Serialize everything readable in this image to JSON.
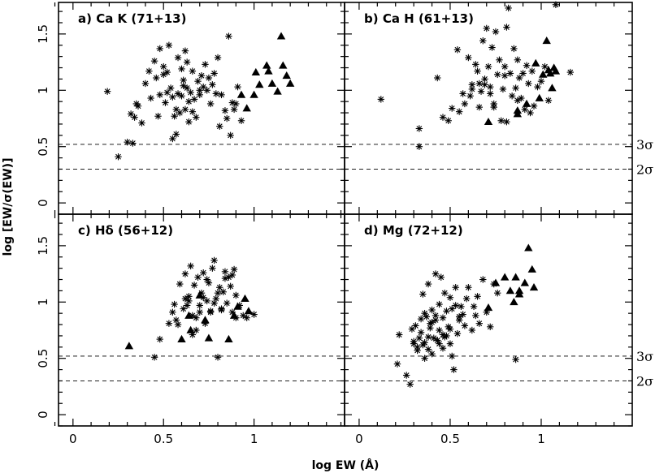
{
  "figure": {
    "ylabel": "log [EW/σ(EW)]",
    "xlabel": "log EW (Å)",
    "sigma_labels": [
      "3σ",
      "2σ"
    ],
    "sigma_levels": [
      0.52,
      0.3
    ]
  },
  "chart_data": [
    {
      "type": "scatter",
      "title": "a) Ca K (71+13)",
      "xlim": [
        -0.08,
        1.5
      ],
      "ylim": [
        -0.1,
        1.78
      ],
      "xticks": [
        "0",
        "0.5",
        "1"
      ],
      "yticks": [
        "0",
        "0.5",
        "1",
        "1.5"
      ],
      "reference_lines": [
        0.52,
        0.3
      ],
      "series": [
        {
          "marker": "asterisk",
          "x": [
            0.19,
            0.25,
            0.3,
            0.32,
            0.33,
            0.34,
            0.35,
            0.36,
            0.38,
            0.4,
            0.42,
            0.43,
            0.45,
            0.46,
            0.48,
            0.48,
            0.5,
            0.5,
            0.51,
            0.52,
            0.53,
            0.54,
            0.55,
            0.56,
            0.57,
            0.58,
            0.58,
            0.59,
            0.6,
            0.6,
            0.61,
            0.62,
            0.62,
            0.63,
            0.63,
            0.64,
            0.64,
            0.65,
            0.66,
            0.66,
            0.67,
            0.68,
            0.69,
            0.7,
            0.7,
            0.71,
            0.72,
            0.73,
            0.74,
            0.75,
            0.76,
            0.77,
            0.78,
            0.79,
            0.8,
            0.81,
            0.82,
            0.84,
            0.85,
            0.86,
            0.87,
            0.88,
            0.89,
            0.9,
            0.91,
            0.93,
            0.55,
            0.57,
            0.61,
            0.47,
            0.52
          ],
          "y": [
            0.99,
            0.41,
            0.54,
            0.79,
            0.53,
            0.76,
            0.88,
            0.86,
            0.71,
            1.06,
            1.17,
            0.93,
            1.26,
            1.11,
            0.96,
            1.37,
            1.21,
            1.14,
            0.89,
            1.16,
            1.4,
            1.02,
            0.57,
            0.77,
            0.61,
            0.97,
            1.29,
            0.8,
            1.19,
            0.95,
            1.09,
            0.83,
            1.35,
            1.02,
            1.25,
            0.9,
            0.72,
            0.98,
            0.81,
            1.17,
            0.92,
            0.76,
            1.08,
            0.96,
            1.0,
            1.13,
            1.03,
            1.23,
            1.0,
            1.11,
            0.88,
            1.05,
            1.15,
            0.97,
            1.29,
            0.68,
            0.96,
            0.82,
            0.75,
            1.48,
            0.6,
            0.89,
            0.83,
            0.88,
            1.03,
            0.73,
            0.94,
            0.83,
            1.04,
            0.77,
            0.98
          ]
        },
        {
          "marker": "triangle",
          "x": [
            0.96,
            1.0,
            1.01,
            1.03,
            1.07,
            1.08,
            1.1,
            1.13,
            1.15,
            1.16,
            1.18,
            1.2,
            0.93
          ],
          "y": [
            0.84,
            0.96,
            1.16,
            1.05,
            1.22,
            1.17,
            1.06,
            0.99,
            1.48,
            1.22,
            1.13,
            1.06,
            0.96
          ]
        }
      ]
    },
    {
      "type": "scatter",
      "title": "b) Ca H (61+13)",
      "xlim": [
        -0.08,
        1.5
      ],
      "ylim": [
        -0.1,
        1.78
      ],
      "xticks": [
        "0",
        "0.5",
        "1"
      ],
      "yticks": [
        "0",
        "0.5",
        "1",
        "1.5"
      ],
      "reference_lines": [
        0.52,
        0.3
      ],
      "series": [
        {
          "marker": "asterisk",
          "x": [
            0.12,
            0.33,
            0.33,
            0.43,
            0.46,
            0.49,
            0.51,
            0.54,
            0.55,
            0.57,
            0.58,
            0.6,
            0.61,
            0.62,
            0.64,
            0.65,
            0.66,
            0.67,
            0.68,
            0.69,
            0.7,
            0.71,
            0.72,
            0.73,
            0.74,
            0.75,
            0.76,
            0.77,
            0.78,
            0.79,
            0.8,
            0.81,
            0.81,
            0.82,
            0.83,
            0.84,
            0.85,
            0.86,
            0.87,
            0.88,
            0.89,
            0.9,
            0.91,
            0.92,
            0.93,
            0.94,
            0.95,
            0.96,
            0.98,
            1.0,
            1.02,
            1.04,
            1.08,
            1.16,
            0.66,
            0.72,
            0.62,
            0.8,
            0.87,
            0.74,
            0.69
          ],
          "y": [
            0.92,
            0.5,
            0.66,
            1.11,
            0.76,
            0.73,
            0.84,
            1.36,
            0.81,
            0.97,
            0.88,
            1.29,
            0.95,
            1.05,
            1.23,
            1.17,
            1.06,
            0.99,
            1.44,
            1.1,
            1.55,
            1.21,
            1.03,
            1.38,
            0.88,
            1.52,
            1.14,
            1.27,
            0.73,
            1.01,
            1.21,
            1.56,
            0.72,
            1.73,
            1.15,
            0.95,
            1.37,
            1.02,
            1.27,
            1.11,
            0.93,
            1.15,
            0.83,
            1.22,
            1.06,
            0.8,
            1.17,
            0.86,
            1.03,
            1.08,
            1.21,
            0.91,
            1.76,
            1.16,
            0.85,
            0.97,
            1.01,
            1.13,
            0.91,
            0.85,
            1.05
          ]
        },
        {
          "marker": "triangle",
          "x": [
            0.71,
            0.87,
            0.92,
            0.97,
            0.99,
            1.01,
            1.03,
            1.04,
            1.05,
            1.06,
            1.07,
            1.08,
            0.87
          ],
          "y": [
            0.72,
            0.82,
            0.88,
            1.24,
            0.93,
            1.14,
            1.44,
            1.18,
            1.15,
            1.02,
            1.2,
            1.17,
            0.79
          ]
        }
      ]
    },
    {
      "type": "scatter",
      "title": "c) Hδ (56+12)",
      "xlim": [
        -0.08,
        1.5
      ],
      "ylim": [
        -0.1,
        1.78
      ],
      "xticks": [
        "0",
        "0.5",
        "1"
      ],
      "yticks": [
        "0",
        "0.5",
        "1",
        "1.5"
      ],
      "reference_lines": [
        0.52,
        0.3
      ],
      "series": [
        {
          "marker": "asterisk",
          "x": [
            0.45,
            0.48,
            0.53,
            0.55,
            0.57,
            0.59,
            0.61,
            0.62,
            0.63,
            0.64,
            0.65,
            0.66,
            0.67,
            0.68,
            0.69,
            0.7,
            0.71,
            0.72,
            0.73,
            0.74,
            0.75,
            0.76,
            0.77,
            0.78,
            0.79,
            0.8,
            0.81,
            0.82,
            0.83,
            0.84,
            0.85,
            0.86,
            0.87,
            0.88,
            0.89,
            0.9,
            0.92,
            0.94,
            0.96,
            1.0,
            0.62,
            0.66,
            0.7,
            0.74,
            0.78,
            0.82,
            0.58,
            0.64,
            0.68,
            0.72,
            0.76,
            0.8,
            0.84,
            0.88,
            0.9,
            0.56
          ],
          "y": [
            0.51,
            0.67,
            0.81,
            0.91,
            0.84,
            1.16,
            0.94,
            1.25,
            0.97,
            1.05,
            1.32,
            0.88,
            1.15,
            0.75,
            1.22,
            0.97,
            1.08,
            1.26,
            0.81,
            1.01,
            1.17,
            0.91,
            1.3,
            1.37,
            1.03,
            0.51,
            1.13,
            0.94,
            1.09,
            1.27,
            0.99,
            1.22,
            1.14,
            0.91,
            1.29,
            1.06,
            0.97,
            0.88,
            0.86,
            0.89,
            1.03,
            0.71,
            0.91,
            1.2,
            0.99,
            0.93,
            0.8,
            1.01,
            0.86,
            1.04,
            0.92,
            1.08,
            1.21,
            1.24,
            0.86,
            0.98
          ]
        },
        {
          "marker": "triangle",
          "x": [
            0.31,
            0.6,
            0.64,
            0.65,
            0.7,
            0.73,
            0.75,
            0.86,
            0.89,
            0.91,
            0.95,
            0.97
          ],
          "y": [
            0.61,
            0.67,
            0.88,
            0.75,
            1.06,
            0.84,
            0.68,
            0.67,
            0.88,
            0.96,
            1.03,
            0.92
          ]
        }
      ]
    },
    {
      "type": "scatter",
      "title": "d) Mg (72+12)",
      "xlim": [
        -0.08,
        1.5
      ],
      "ylim": [
        -0.1,
        1.78
      ],
      "xticks": [
        "0",
        "0.5",
        "1"
      ],
      "yticks": [
        "0",
        "0.5",
        "1",
        "1.5"
      ],
      "reference_lines": [
        0.52,
        0.3
      ],
      "series": [
        {
          "marker": "asterisk",
          "x": [
            0.21,
            0.22,
            0.26,
            0.28,
            0.29,
            0.3,
            0.31,
            0.32,
            0.33,
            0.34,
            0.35,
            0.35,
            0.36,
            0.37,
            0.38,
            0.38,
            0.39,
            0.4,
            0.4,
            0.41,
            0.42,
            0.42,
            0.43,
            0.44,
            0.44,
            0.45,
            0.46,
            0.46,
            0.47,
            0.48,
            0.48,
            0.49,
            0.5,
            0.5,
            0.51,
            0.52,
            0.53,
            0.53,
            0.54,
            0.55,
            0.56,
            0.57,
            0.58,
            0.59,
            0.6,
            0.62,
            0.63,
            0.64,
            0.65,
            0.66,
            0.68,
            0.7,
            0.72,
            0.74,
            0.76,
            0.86,
            0.3,
            0.34,
            0.36,
            0.4,
            0.44,
            0.38,
            0.42,
            0.46,
            0.5,
            0.32,
            0.36,
            0.39,
            0.43,
            0.47,
            0.51,
            0.55
          ],
          "y": [
            0.45,
            0.71,
            0.35,
            0.27,
            0.76,
            0.63,
            0.79,
            0.57,
            0.68,
            0.85,
            0.62,
            1.07,
            0.5,
            0.87,
            0.69,
            1.16,
            0.77,
            0.54,
            0.93,
            0.68,
            1.25,
            0.84,
            0.66,
            0.98,
            0.75,
            1.22,
            0.59,
            0.86,
            1.08,
            0.7,
            0.92,
            0.78,
            0.63,
            1.04,
            0.52,
            0.4,
            0.97,
            1.13,
            0.72,
            0.84,
            0.96,
            0.89,
            0.79,
            1.03,
            1.13,
            0.75,
            0.96,
            0.88,
            1.05,
            0.81,
            1.2,
            0.91,
            0.78,
            1.16,
            1.08,
            0.49,
            0.65,
            0.73,
            0.9,
            0.82,
            0.63,
            0.58,
            0.88,
            0.71,
            0.76,
            0.6,
            0.64,
            0.81,
            0.66,
            0.69,
            0.94,
            0.87
          ]
        },
        {
          "marker": "triangle",
          "x": [
            0.71,
            0.75,
            0.8,
            0.83,
            0.86,
            0.88,
            0.88,
            0.91,
            0.93,
            0.95,
            0.96,
            0.85
          ],
          "y": [
            0.95,
            1.17,
            1.22,
            1.1,
            1.22,
            1.1,
            1.07,
            1.17,
            1.48,
            1.29,
            1.13,
            1.0
          ]
        }
      ]
    }
  ]
}
